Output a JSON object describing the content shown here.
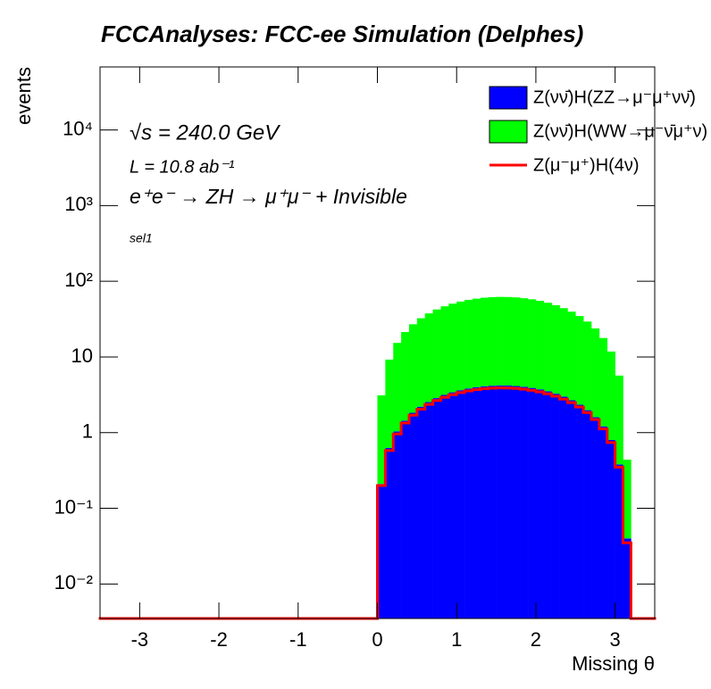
{
  "chart_data": {
    "type": "histogram",
    "title": "FCCAnalyses: FCC-ee Simulation (Delphes)",
    "xlabel": "Missing θ",
    "ylabel": "events",
    "annotations": [
      "√s = 240.0 GeV",
      "L = 10.8 ab⁻¹",
      "e⁺e⁻ → ZH → μ⁺μ⁻ + Invisible",
      "sel1"
    ],
    "log_y": true,
    "stacked": true,
    "legend": "top right",
    "bins": [
      -3.5,
      -3.4,
      -3.3,
      -3.2,
      -3.1,
      -3.0,
      -2.9,
      -2.8,
      -2.7,
      -2.6,
      -2.5,
      -2.4,
      -2.3,
      -2.2,
      -2.1,
      -2.0,
      -1.9,
      -1.8,
      -1.7,
      -1.6,
      -1.5,
      -1.4,
      -1.3,
      -1.2,
      -1.1,
      -1.0,
      -0.9,
      -0.8,
      -0.7,
      -0.6,
      -0.5,
      -0.4,
      -0.3,
      -0.2,
      -0.1,
      0.0,
      0.1,
      0.2,
      0.3,
      0.4,
      0.5,
      0.6,
      0.7,
      0.8,
      0.9,
      1.0,
      1.1,
      1.2,
      1.3,
      1.4,
      1.5,
      1.6,
      1.7,
      1.8,
      1.9,
      2.0,
      2.1,
      2.2,
      2.3,
      2.4,
      2.5,
      2.6,
      2.7,
      2.8,
      2.9,
      3.0,
      3.1,
      3.2,
      3.3,
      3.4,
      3.5
    ],
    "series": [
      {
        "name": "Z(νν̄)H(ZZ→μ⁻μ⁺νν̄)",
        "color": "#0000ff",
        "style": "fill",
        "values": [
          0,
          0,
          0,
          0,
          0,
          0,
          0,
          0,
          0,
          0,
          0,
          0,
          0,
          0,
          0,
          0,
          0,
          0,
          0,
          0,
          0,
          0,
          0,
          0,
          0,
          0,
          0,
          0,
          0,
          0,
          0,
          0,
          0,
          0,
          0,
          0.21,
          0.63,
          1.04,
          1.44,
          1.83,
          2.2,
          2.54,
          2.86,
          3.15,
          3.41,
          3.64,
          3.83,
          3.99,
          4.1,
          4.17,
          4.2,
          4.19,
          4.13,
          4.04,
          3.9,
          3.73,
          3.52,
          3.27,
          2.99,
          2.68,
          2.34,
          1.98,
          1.6,
          1.21,
          0.8,
          0.38,
          0.04,
          0,
          0,
          0
        ]
      },
      {
        "name": "Z(νν̄)H(WW→μ⁻ν̄μ⁺ν)",
        "color": "#00ff00",
        "style": "fill",
        "values": [
          0,
          0,
          0,
          0,
          0,
          0,
          0,
          0,
          0,
          0,
          0,
          0,
          0,
          0,
          0,
          0,
          0,
          0,
          0,
          0,
          0,
          0,
          0,
          0,
          0,
          0,
          0,
          0,
          0,
          0,
          0,
          0,
          0,
          0,
          0,
          2.9,
          8.6,
          14.3,
          19.9,
          25.2,
          30.3,
          35.1,
          39.6,
          43.6,
          47.2,
          50.3,
          53,
          55,
          56.6,
          57.6,
          58,
          57.8,
          57.1,
          55.7,
          53.9,
          51.4,
          48.5,
          45.1,
          41.2,
          37,
          32.4,
          27.4,
          22.2,
          16.6,
          11,
          5.3,
          0.4,
          0,
          0,
          0
        ]
      },
      {
        "name": "Z(μ⁻μ⁺)H(4ν)",
        "color": "#ff0000",
        "style": "line",
        "values": [
          0,
          0,
          0,
          0,
          0,
          0,
          0,
          0,
          0,
          0,
          0,
          0,
          0,
          0,
          0,
          0,
          0,
          0,
          0,
          0,
          0,
          0,
          0,
          0,
          0,
          0,
          0,
          0,
          0,
          0,
          0,
          0,
          0,
          0,
          0,
          0.2,
          0.58,
          0.96,
          1.34,
          1.7,
          2.04,
          2.36,
          2.66,
          2.93,
          3.17,
          3.38,
          3.56,
          3.7,
          3.81,
          3.87,
          3.9,
          3.89,
          3.84,
          3.75,
          3.62,
          3.46,
          3.26,
          3.03,
          2.77,
          2.49,
          2.18,
          1.84,
          1.49,
          1.12,
          0.74,
          0.35,
          0.035,
          0,
          0,
          0
        ]
      }
    ],
    "xlim": [
      -3.5,
      3.5
    ],
    "xticks": [
      -3,
      -2,
      -1,
      0,
      1,
      2,
      3
    ],
    "ylim": [
      0.0035,
      68000
    ],
    "yticks": [
      {
        "value": 0.01,
        "label": "10⁻²"
      },
      {
        "value": 0.1,
        "label": "10⁻¹"
      },
      1,
      10,
      {
        "value": 100,
        "label": "10²"
      },
      {
        "value": 1000,
        "label": "10³"
      },
      {
        "value": 10000,
        "label": "10⁴"
      }
    ]
  }
}
